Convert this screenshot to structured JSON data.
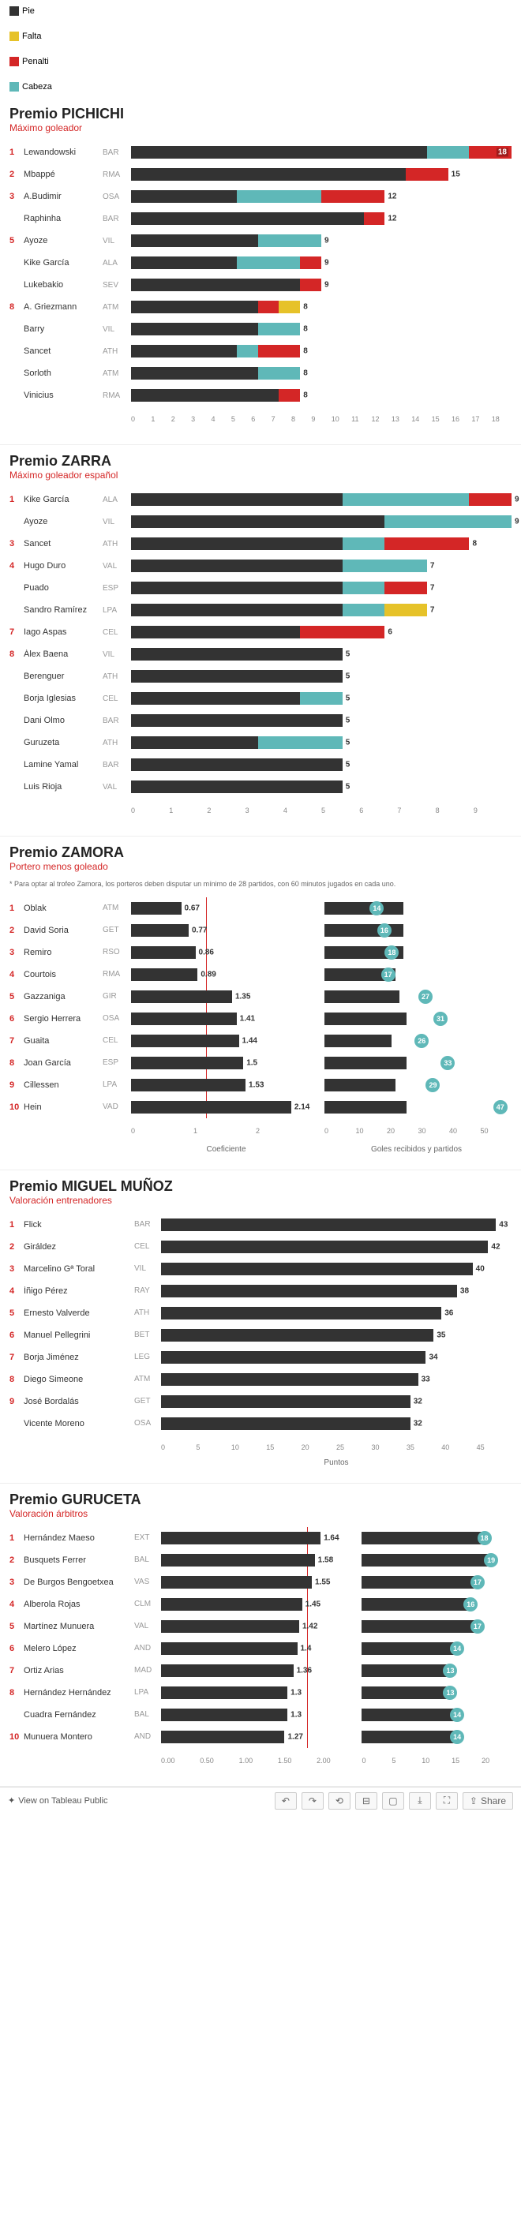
{
  "colors": {
    "pie": "#333333",
    "penalti": "#d42626",
    "falta": "#e6c229",
    "cabeza": "#5fb8b8",
    "grid": "#eeeeee",
    "accent": "#d42626",
    "badge_teal": "#5fb8b8",
    "badge_dark": "#4a5a5a"
  },
  "legend": [
    {
      "label": "Pie",
      "color": "#333333"
    },
    {
      "label": "Falta",
      "color": "#e6c229"
    },
    {
      "label": "Penalti",
      "color": "#d42626"
    },
    {
      "label": "Cabeza",
      "color": "#5fb8b8"
    }
  ],
  "pichichi": {
    "title": "Premio PICHICHI",
    "subtitle": "Máximo goleador",
    "max": 18,
    "axis_ticks": [
      0,
      1,
      2,
      3,
      4,
      5,
      6,
      7,
      8,
      9,
      10,
      11,
      12,
      13,
      14,
      15,
      16,
      17,
      18
    ],
    "rows": [
      {
        "rank": 1,
        "name": "Lewandowski",
        "team": "BAR",
        "pie": 14,
        "penalti": 2,
        "falta": 0,
        "cabeza": 2,
        "total": 18,
        "label_inside": true
      },
      {
        "rank": 2,
        "name": "Mbappé",
        "team": "RMA",
        "pie": 13,
        "penalti": 2,
        "falta": 0,
        "cabeza": 0,
        "total": 15
      },
      {
        "rank": 3,
        "name": "A.Budimir",
        "team": "OSA",
        "pie": 5,
        "penalti": 3,
        "falta": 0,
        "cabeza": 4,
        "total": 12
      },
      {
        "rank": null,
        "name": "Raphinha",
        "team": "BAR",
        "pie": 11,
        "penalti": 1,
        "falta": 0,
        "cabeza": 0,
        "total": 12
      },
      {
        "rank": 5,
        "name": "Ayoze",
        "team": "VIL",
        "pie": 6,
        "penalti": 0,
        "falta": 0,
        "cabeza": 3,
        "total": 9
      },
      {
        "rank": null,
        "name": "Kike García",
        "team": "ALA",
        "pie": 5,
        "penalti": 1,
        "falta": 0,
        "cabeza": 3,
        "total": 9
      },
      {
        "rank": null,
        "name": "Lukebakio",
        "team": "SEV",
        "pie": 8,
        "penalti": 1,
        "falta": 0,
        "cabeza": 0,
        "total": 9
      },
      {
        "rank": 8,
        "name": "A. Griezmann",
        "team": "ATM",
        "pie": 6,
        "penalti": 1,
        "falta": 1,
        "cabeza": 0,
        "total": 8
      },
      {
        "rank": null,
        "name": "Barry",
        "team": "VIL",
        "pie": 6,
        "penalti": 0,
        "falta": 0,
        "cabeza": 2,
        "total": 8
      },
      {
        "rank": null,
        "name": "Sancet",
        "team": "ATH",
        "pie": 5,
        "penalti": 2,
        "falta": 0,
        "cabeza": 1,
        "total": 8
      },
      {
        "rank": null,
        "name": "Sorloth",
        "team": "ATM",
        "pie": 6,
        "penalti": 0,
        "falta": 0,
        "cabeza": 2,
        "total": 8
      },
      {
        "rank": null,
        "name": "Vinicius",
        "team": "RMA",
        "pie": 7,
        "penalti": 1,
        "falta": 0,
        "cabeza": 0,
        "total": 8
      }
    ]
  },
  "zarra": {
    "title": "Premio ZARRA",
    "subtitle": "Máximo goleador español",
    "max": 9,
    "axis_ticks": [
      0,
      1,
      2,
      3,
      4,
      5,
      6,
      7,
      8,
      9
    ],
    "rows": [
      {
        "rank": 1,
        "name": "Kike García",
        "team": "ALA",
        "pie": 5,
        "penalti": 1,
        "falta": 0,
        "cabeza": 3,
        "total": 9
      },
      {
        "rank": null,
        "name": "Ayoze",
        "team": "VIL",
        "pie": 6,
        "penalti": 0,
        "falta": 0,
        "cabeza": 3,
        "total": 9
      },
      {
        "rank": 3,
        "name": "Sancet",
        "team": "ATH",
        "pie": 5,
        "penalti": 2,
        "falta": 0,
        "cabeza": 1,
        "total": 8
      },
      {
        "rank": 4,
        "name": "Hugo Duro",
        "team": "VAL",
        "pie": 5,
        "penalti": 0,
        "falta": 0,
        "cabeza": 2,
        "total": 7
      },
      {
        "rank": null,
        "name": "Puado",
        "team": "ESP",
        "pie": 5,
        "penalti": 1,
        "falta": 0,
        "cabeza": 1,
        "total": 7
      },
      {
        "rank": null,
        "name": "Sandro Ramírez",
        "team": "LPA",
        "pie": 5,
        "penalti": 0,
        "falta": 1,
        "cabeza": 1,
        "total": 7
      },
      {
        "rank": 7,
        "name": "Iago Aspas",
        "team": "CEL",
        "pie": 4,
        "penalti": 2,
        "falta": 0,
        "cabeza": 0,
        "total": 6
      },
      {
        "rank": 8,
        "name": "Álex Baena",
        "team": "VIL",
        "pie": 5,
        "penalti": 0,
        "falta": 0,
        "cabeza": 0,
        "total": 5
      },
      {
        "rank": null,
        "name": "Berenguer",
        "team": "ATH",
        "pie": 5,
        "penalti": 0,
        "falta": 0,
        "cabeza": 0,
        "total": 5
      },
      {
        "rank": null,
        "name": "Borja Iglesias",
        "team": "CEL",
        "pie": 4,
        "penalti": 0,
        "falta": 0,
        "cabeza": 1,
        "total": 5
      },
      {
        "rank": null,
        "name": "Dani Olmo",
        "team": "BAR",
        "pie": 5,
        "penalti": 0,
        "falta": 0,
        "cabeza": 0,
        "total": 5
      },
      {
        "rank": null,
        "name": "Guruzeta",
        "team": "ATH",
        "pie": 3,
        "penalti": 0,
        "falta": 0,
        "cabeza": 2,
        "total": 5
      },
      {
        "rank": null,
        "name": "Lamine Yamal",
        "team": "BAR",
        "pie": 5,
        "penalti": 0,
        "falta": 0,
        "cabeza": 0,
        "total": 5
      },
      {
        "rank": null,
        "name": "Luis Rioja",
        "team": "VAL",
        "pie": 5,
        "penalti": 0,
        "falta": 0,
        "cabeza": 0,
        "total": 5
      }
    ]
  },
  "zamora": {
    "title": "Premio ZAMORA",
    "subtitle": "Portero menos goleado",
    "note": "* Para optar al trofeo Zamora, los porteros deben disputar un mínimo de 28 partidos, con 60 minutos jugados en cada uno.",
    "coef_max": 2.5,
    "coef_ref": 1.0,
    "coef_label": "Coeficiente",
    "partidos_max": 50,
    "partidos_label": "Goles recibidos y partidos",
    "coef_ticks": [
      0,
      1,
      2
    ],
    "partidos_ticks": [
      0,
      10,
      20,
      30,
      40,
      50
    ],
    "rows": [
      {
        "rank": 1,
        "name": "Oblak",
        "team": "ATM",
        "coef": 0.67,
        "goles": 14,
        "partidos": 21
      },
      {
        "rank": 2,
        "name": "David Soria",
        "team": "GET",
        "coef": 0.77,
        "goles": 16,
        "partidos": 21
      },
      {
        "rank": 3,
        "name": "Remiro",
        "team": "RSO",
        "coef": 0.86,
        "goles": 18,
        "partidos": 21
      },
      {
        "rank": 4,
        "name": "Courtois",
        "team": "RMA",
        "coef": 0.89,
        "goles": 17,
        "partidos": 19
      },
      {
        "rank": 5,
        "name": "Gazzaniga",
        "team": "GIR",
        "coef": 1.35,
        "goles": 27,
        "partidos": 20
      },
      {
        "rank": 6,
        "name": "Sergio Herrera",
        "team": "OSA",
        "coef": 1.41,
        "goles": 31,
        "partidos": 22
      },
      {
        "rank": 7,
        "name": "Guaita",
        "team": "CEL",
        "coef": 1.44,
        "goles": 26,
        "partidos": 18
      },
      {
        "rank": 8,
        "name": "Joan García",
        "team": "ESP",
        "coef": 1.5,
        "goles": 33,
        "partidos": 22
      },
      {
        "rank": 9,
        "name": "Cillessen",
        "team": "LPA",
        "coef": 1.53,
        "goles": 29,
        "partidos": 19
      },
      {
        "rank": 10,
        "name": "Hein",
        "team": "VAD",
        "coef": 2.14,
        "goles": 47,
        "partidos": 22
      }
    ]
  },
  "munoz": {
    "title": "Premio MIGUEL MUÑOZ",
    "subtitle": "Valoración entrenadores",
    "max": 45,
    "axis_label": "Puntos",
    "axis_ticks": [
      0,
      5,
      10,
      15,
      20,
      25,
      30,
      35,
      40,
      45
    ],
    "rows": [
      {
        "rank": 1,
        "name": "Flick",
        "team": "BAR",
        "val": 43
      },
      {
        "rank": 2,
        "name": "Giráldez",
        "team": "CEL",
        "val": 42
      },
      {
        "rank": 3,
        "name": "Marcelino Gª Toral",
        "team": "VIL",
        "val": 40
      },
      {
        "rank": 4,
        "name": "Íñigo Pérez",
        "team": "RAY",
        "val": 38
      },
      {
        "rank": 5,
        "name": "Ernesto Valverde",
        "team": "ATH",
        "val": 36
      },
      {
        "rank": 6,
        "name": "Manuel Pellegrini",
        "team": "BET",
        "val": 35
      },
      {
        "rank": 7,
        "name": "Borja Jiménez",
        "team": "LEG",
        "val": 34
      },
      {
        "rank": 8,
        "name": "Diego Simeone",
        "team": "ATM",
        "val": 33
      },
      {
        "rank": 9,
        "name": "José Bordalás",
        "team": "GET",
        "val": 32
      },
      {
        "rank": null,
        "name": "Vicente Moreno",
        "team": "OSA",
        "val": 32
      }
    ]
  },
  "guruceta": {
    "title": "Premio GURUCETA",
    "subtitle": "Valoración árbitros",
    "coef_max": 2.0,
    "coef_ref": 1.5,
    "partidos_max": 22,
    "coef_ticks": [
      "0.00",
      "0.50",
      "1.00",
      "1.50",
      "2.00"
    ],
    "partidos_ticks": [
      0,
      5,
      10,
      15,
      20
    ],
    "rows": [
      {
        "rank": 1,
        "name": "Hernández Maeso",
        "team": "EXT",
        "coef": 1.64,
        "partidos": 18
      },
      {
        "rank": 2,
        "name": "Busquets Ferrer",
        "team": "BAL",
        "coef": 1.58,
        "partidos": 19
      },
      {
        "rank": 3,
        "name": "De Burgos Bengoetxea",
        "team": "VAS",
        "coef": 1.55,
        "partidos": 17
      },
      {
        "rank": 4,
        "name": "Alberola Rojas",
        "team": "CLM",
        "coef": 1.45,
        "partidos": 16
      },
      {
        "rank": 5,
        "name": "Martínez Munuera",
        "team": "VAL",
        "coef": 1.42,
        "partidos": 17
      },
      {
        "rank": 6,
        "name": "Melero López",
        "team": "AND",
        "coef": 1.4,
        "partidos": 14
      },
      {
        "rank": 7,
        "name": "Ortiz Arias",
        "team": "MAD",
        "coef": 1.36,
        "partidos": 13
      },
      {
        "rank": 8,
        "name": "Hernández Hernández",
        "team": "LPA",
        "coef": 1.3,
        "partidos": 13
      },
      {
        "rank": null,
        "name": "Cuadra Fernández",
        "team": "BAL",
        "coef": 1.3,
        "partidos": 14
      },
      {
        "rank": 10,
        "name": "Munuera Montero",
        "team": "AND",
        "coef": 1.27,
        "partidos": 14
      }
    ]
  },
  "footer": {
    "view": "View on Tableau Public",
    "share": "Share"
  }
}
